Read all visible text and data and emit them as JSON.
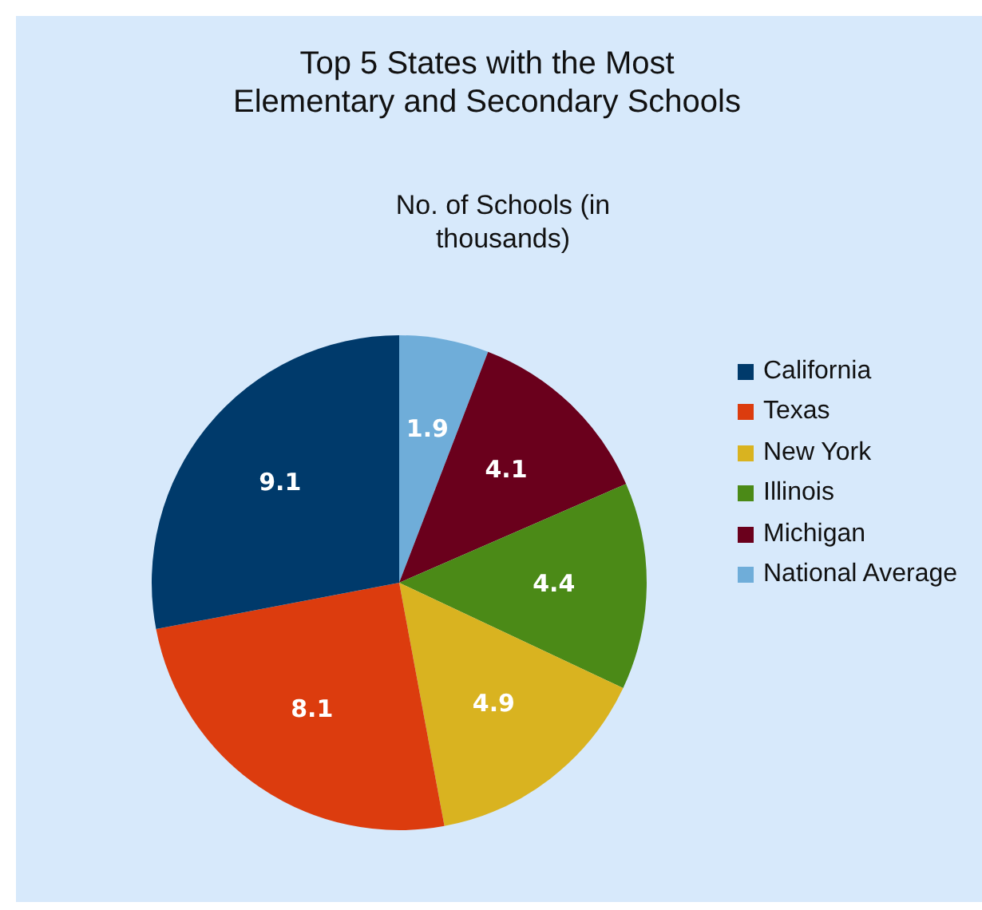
{
  "chart_data": {
    "type": "pie",
    "title": "Top 5 States with the Most Elementary and Secondary Schools",
    "subtitle": "No. of Schools (in thousands)",
    "categories": [
      "California",
      "Texas",
      "New York",
      "Illinois",
      "Michigan",
      "National Average"
    ],
    "values": [
      9.1,
      8.1,
      4.9,
      4.4,
      4.1,
      1.9
    ],
    "colors": [
      "#003a6b",
      "#dc3c0e",
      "#d9b320",
      "#4b8a17",
      "#6a001c",
      "#6fadd9"
    ],
    "data_labels": true,
    "legend": "right"
  }
}
